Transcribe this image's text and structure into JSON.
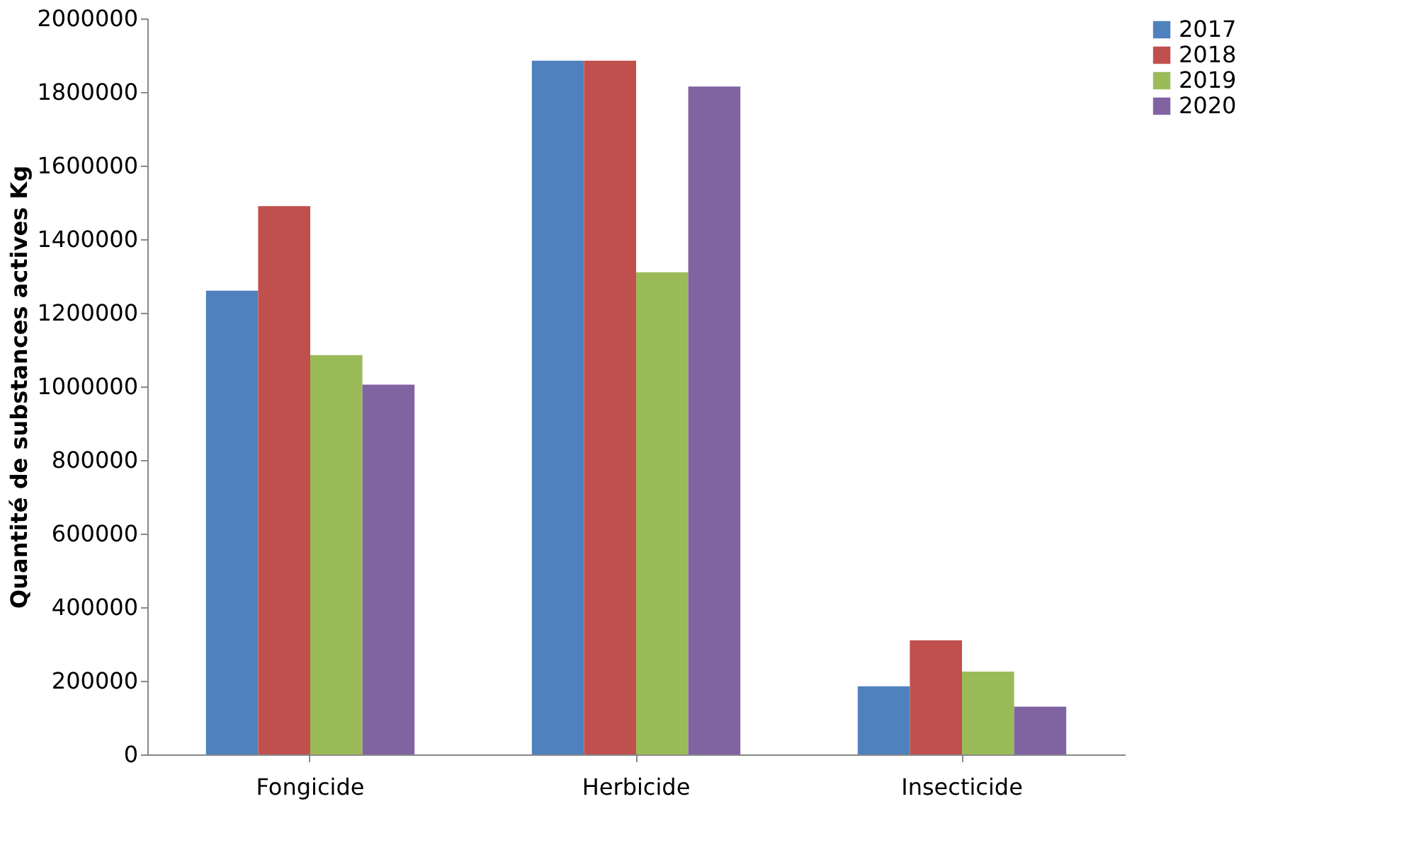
{
  "chart_data": {
    "type": "bar",
    "ylabel": "Quantité de substances actives Kg",
    "categories": [
      "Fongicide",
      "Herbicide",
      "Insecticide"
    ],
    "series": [
      {
        "name": "2017",
        "color": "#4f81bd",
        "values": [
          1260000,
          1885000,
          185000
        ]
      },
      {
        "name": "2018",
        "color": "#c0504d",
        "values": [
          1490000,
          1885000,
          310000
        ]
      },
      {
        "name": "2019",
        "color": "#9bbb59",
        "values": [
          1085000,
          1310000,
          225000
        ]
      },
      {
        "name": "2020",
        "color": "#8064a2",
        "values": [
          1005000,
          1815000,
          130000
        ]
      }
    ],
    "ylim": [
      0,
      2000000
    ],
    "yticks": [
      0,
      200000,
      400000,
      600000,
      800000,
      1000000,
      1200000,
      1400000,
      1600000,
      1800000,
      2000000
    ],
    "grid": false,
    "legend": "right"
  }
}
